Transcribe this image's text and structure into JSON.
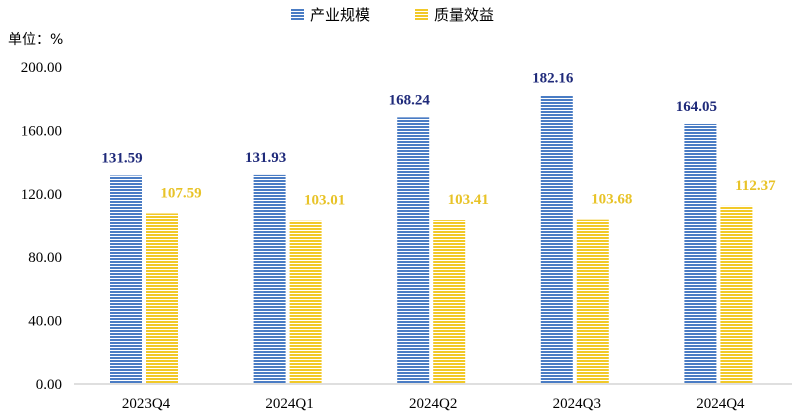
{
  "chart_data": {
    "type": "bar",
    "unit_label": "单位：%",
    "categories": [
      "2023Q4",
      "2024Q1",
      "2024Q2",
      "2024Q3",
      "2024Q4"
    ],
    "series": [
      {
        "name": "产业规模",
        "values": [
          131.59,
          131.93,
          168.24,
          182.16,
          164.05
        ],
        "labels": [
          "131.59",
          "131.93",
          "168.24",
          "182.16",
          "164.05"
        ],
        "color": "#4a7cc4",
        "label_color": "#1f2a7a"
      },
      {
        "name": "质量效益",
        "values": [
          107.59,
          103.01,
          103.41,
          103.68,
          112.37
        ],
        "labels": [
          "107.59",
          "103.01",
          "103.41",
          "103.68",
          "112.37"
        ],
        "color": "#f2c928",
        "label_color": "#e8c328"
      }
    ],
    "yticks": [
      "0.00",
      "40.00",
      "80.00",
      "120.00",
      "160.00",
      "200.00"
    ],
    "ylim": [
      0,
      200
    ],
    "grid": false,
    "legend_position": "top-center",
    "bar_pattern": "horizontal-stripes"
  }
}
